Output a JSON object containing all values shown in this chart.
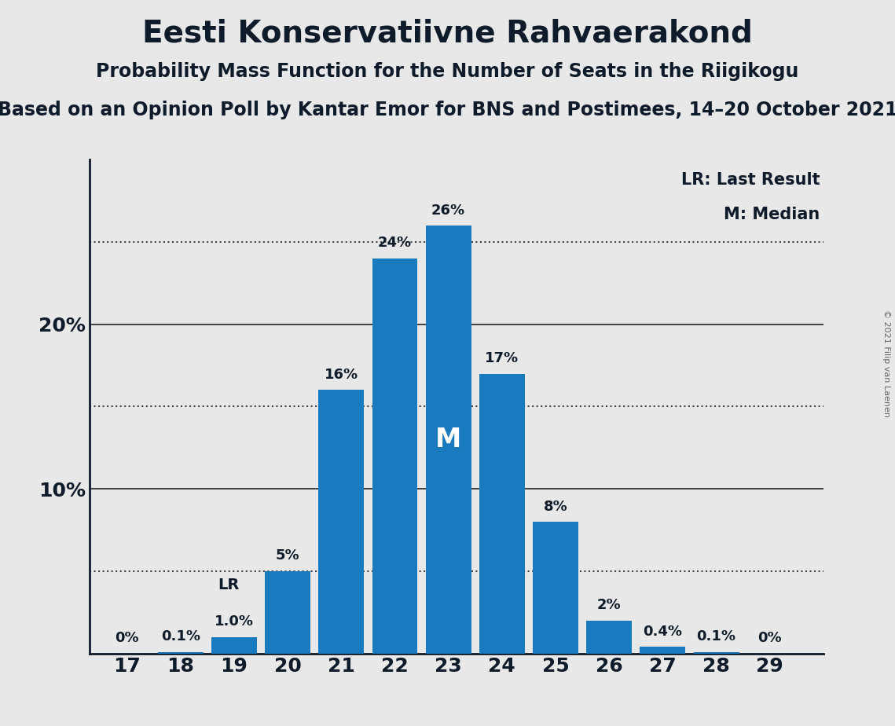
{
  "title": "Eesti Konservatiivne Rahvaerakond",
  "subtitle1": "Probability Mass Function for the Number of Seats in the Riigikogu",
  "subtitle2": "Based on an Opinion Poll by Kantar Emor for BNS and Postimees, 14–20 October 2021",
  "copyright": "© 2021 Filip van Laenen",
  "seats": [
    17,
    18,
    19,
    20,
    21,
    22,
    23,
    24,
    25,
    26,
    27,
    28,
    29
  ],
  "probabilities": [
    0.0,
    0.1,
    1.0,
    5.0,
    16.0,
    24.0,
    26.0,
    17.0,
    8.0,
    2.0,
    0.4,
    0.1,
    0.0
  ],
  "bar_color": "#1a7abf",
  "background_color": "#e8e8e8",
  "bar_labels": [
    "0%",
    "0.1%",
    "1.0%",
    "5%",
    "16%",
    "24%",
    "26%",
    "17%",
    "8%",
    "2%",
    "0.4%",
    "0.1%",
    "0%"
  ],
  "median_seat": 23,
  "last_result_seat": 19,
  "legend_lr": "LR: Last Result",
  "legend_m": "M: Median",
  "yticks": [
    10,
    20
  ],
  "dotted_lines": [
    5,
    15,
    25
  ],
  "solid_lines": [
    10,
    20
  ],
  "ylim": [
    0,
    30
  ],
  "title_fontsize": 28,
  "subtitle1_fontsize": 17,
  "subtitle2_fontsize": 17,
  "bar_label_fontsize": 13,
  "tick_fontsize": 18,
  "legend_fontsize": 15,
  "axis_label_color": "#0d1b2a",
  "title_color": "#0d1b2a",
  "bar_width": 0.85
}
